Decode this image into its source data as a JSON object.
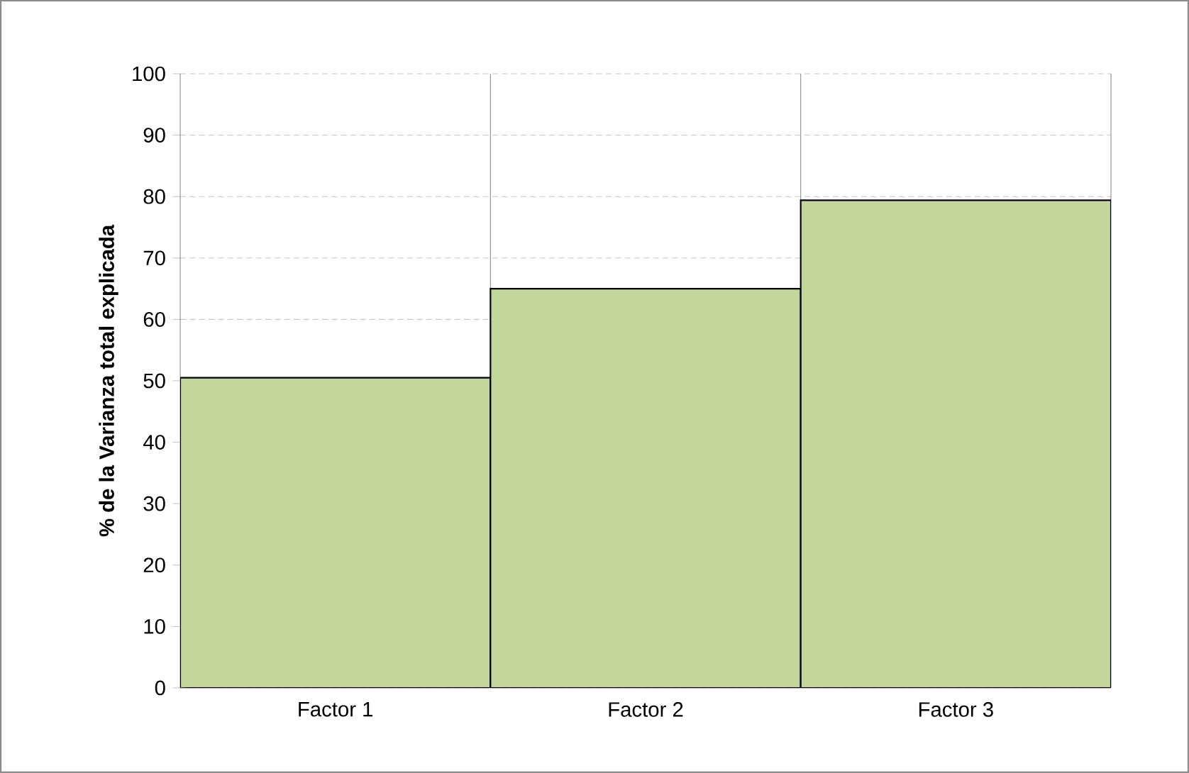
{
  "chart_data": {
    "type": "bar",
    "ylabel": "% de la Varianza  total explicada",
    "categories": [
      "Factor 1",
      "Factor 2",
      "Factor 3"
    ],
    "values": [
      50.5,
      65,
      79.4
    ],
    "color": "#c3d69b",
    "ylim": [
      0,
      100
    ],
    "yticks": [
      0,
      10,
      20,
      30,
      40,
      50,
      60,
      70,
      80,
      90,
      100
    ],
    "grid": true
  }
}
